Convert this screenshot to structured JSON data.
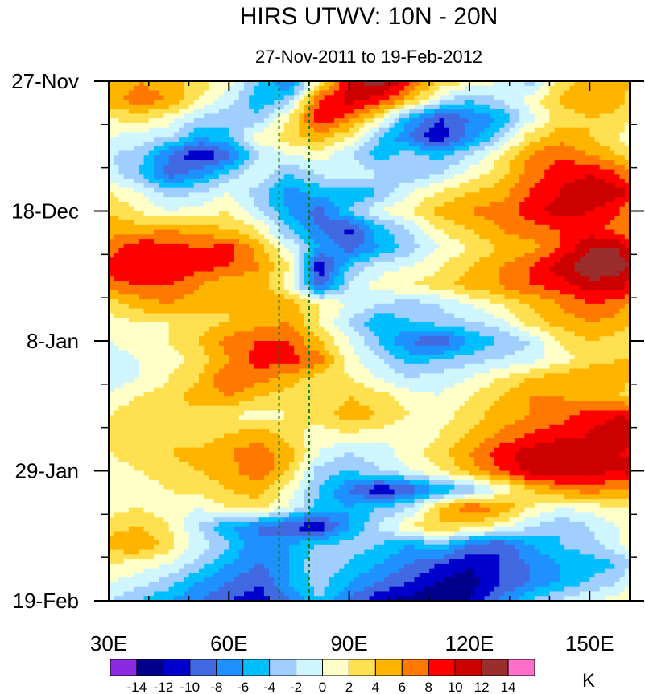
{
  "chart_data": {
    "type": "heatmap",
    "title": "HIRS UTWV: 10N - 20N",
    "subtitle": "27-Nov-2011 to 19-Feb-2012",
    "xlabel": "",
    "ylabel": "",
    "units": "K",
    "x_range": [
      30,
      160
    ],
    "x_ticks": [
      {
        "value": 30,
        "label": "30E"
      },
      {
        "value": 60,
        "label": "60E"
      },
      {
        "value": 90,
        "label": "90E"
      },
      {
        "value": 120,
        "label": "120E"
      },
      {
        "value": 150,
        "label": "150E"
      }
    ],
    "y_range_days": [
      0,
      84
    ],
    "y_ticks": [
      {
        "day": 0,
        "label": "27-Nov"
      },
      {
        "day": 21,
        "label": "18-Dec"
      },
      {
        "day": 42,
        "label": "8-Jan"
      },
      {
        "day": 63,
        "label": "29-Jan"
      },
      {
        "day": 84,
        "label": "19-Feb"
      }
    ],
    "reference_lines_lon": [
      72.5,
      80
    ],
    "colorbar": {
      "colors": [
        "#8a2be2",
        "#00008b",
        "#0000cd",
        "#4169e1",
        "#1e90ff",
        "#00bfff",
        "#a0cfff",
        "#cff5ff",
        "#ffffc8",
        "#ffe050",
        "#ffb400",
        "#ff7800",
        "#ff0000",
        "#cd0000",
        "#9b2d2d",
        "#ff6ec8"
      ],
      "labels": [
        "-14",
        "-12",
        "-10",
        "-8",
        "-6",
        "-4",
        "-2",
        "0",
        "2",
        "4",
        "6",
        "8",
        "10",
        "12",
        "14"
      ]
    },
    "anomaly_field": {
      "lons": [
        30,
        37.5,
        45,
        52.5,
        60,
        67.5,
        75,
        82.5,
        90,
        97.5,
        105,
        112.5,
        120,
        127.5,
        135,
        142.5,
        150,
        157.5,
        160
      ],
      "days": [
        0,
        3,
        6,
        9,
        12,
        15,
        18,
        21,
        24,
        27,
        30,
        33,
        36,
        39,
        42,
        45,
        48,
        51,
        54,
        57,
        60,
        63,
        66,
        69,
        72,
        75,
        78,
        81,
        84
      ],
      "values": [
        [
          4,
          6,
          5,
          3,
          1,
          -4,
          -9,
          2,
          10,
          14,
          8,
          4,
          2,
          0,
          -3,
          3,
          5,
          6,
          4
        ],
        [
          5,
          7,
          6,
          2,
          -1,
          -6,
          -3,
          8,
          11,
          9,
          5,
          -1,
          -4,
          -2,
          1,
          4,
          6,
          5,
          3
        ],
        [
          2,
          3,
          1,
          -2,
          -4,
          -3,
          2,
          10,
          7,
          2,
          -6,
          -10,
          -8,
          -6,
          -1,
          3,
          4,
          3,
          2
        ],
        [
          0,
          -1,
          -2,
          -6,
          -4,
          1,
          3,
          5,
          2,
          -4,
          -8,
          -12,
          -7,
          -3,
          3,
          5,
          4,
          2,
          1
        ],
        [
          -2,
          -3,
          -8,
          -12,
          -9,
          -2,
          0,
          1,
          -2,
          -5,
          -3,
          -5,
          -2,
          2,
          6,
          8,
          6,
          4,
          2
        ],
        [
          -1,
          -4,
          -9,
          -7,
          -3,
          0,
          -4,
          -2,
          0,
          -2,
          -4,
          -2,
          1,
          3,
          7,
          9,
          10,
          8,
          6
        ],
        [
          2,
          0,
          -3,
          -2,
          0,
          -3,
          -7,
          -5,
          -6,
          -4,
          0,
          2,
          4,
          5,
          8,
          10,
          12,
          11,
          9
        ],
        [
          4,
          2,
          0,
          1,
          2,
          -2,
          -6,
          -9,
          -4,
          0,
          2,
          5,
          6,
          7,
          9,
          11,
          10,
          8,
          6
        ],
        [
          5,
          5,
          6,
          5,
          4,
          2,
          -4,
          -8,
          -11,
          -5,
          -2,
          2,
          4,
          6,
          7,
          8,
          9,
          7,
          6
        ],
        [
          7,
          10,
          9,
          8,
          9,
          5,
          0,
          -6,
          -9,
          -6,
          -3,
          0,
          2,
          4,
          5,
          8,
          12,
          12,
          10
        ],
        [
          9,
          10,
          10,
          9,
          8,
          6,
          2,
          -12,
          -4,
          -1,
          0,
          2,
          4,
          6,
          8,
          11,
          14,
          13,
          12
        ],
        [
          7,
          8,
          8,
          6,
          4,
          5,
          1,
          -9,
          -2,
          1,
          2,
          3,
          5,
          6,
          8,
          9,
          11,
          11,
          9
        ],
        [
          3,
          5,
          6,
          5,
          4,
          6,
          5,
          2,
          0,
          -2,
          -3,
          -2,
          0,
          2,
          4,
          6,
          8,
          7,
          5
        ],
        [
          1,
          2,
          2,
          3,
          4,
          5,
          6,
          2,
          -2,
          -6,
          -4,
          -3,
          -2,
          -1,
          3,
          5,
          6,
          5,
          4
        ],
        [
          0,
          1,
          2,
          4,
          7,
          8,
          8,
          4,
          0,
          -4,
          -8,
          -10,
          -6,
          -4,
          -2,
          2,
          4,
          3,
          3
        ],
        [
          -1,
          0,
          1,
          3,
          6,
          9,
          9,
          7,
          1,
          -2,
          -5,
          -4,
          -3,
          -2,
          -1,
          1,
          3,
          4,
          4
        ],
        [
          -2,
          0,
          2,
          4,
          8,
          7,
          5,
          3,
          2,
          0,
          -2,
          -1,
          0,
          2,
          4,
          5,
          6,
          5,
          4
        ],
        [
          1,
          2,
          3,
          5,
          6,
          4,
          3,
          2,
          4,
          3,
          1,
          0,
          2,
          4,
          6,
          6,
          5,
          4,
          3
        ],
        [
          2,
          3,
          4,
          3,
          2,
          1,
          2,
          3,
          5,
          4,
          2,
          1,
          3,
          5,
          6,
          7,
          9,
          10,
          9
        ],
        [
          3,
          4,
          3,
          2,
          4,
          5,
          3,
          1,
          2,
          1,
          0,
          2,
          4,
          6,
          8,
          9,
          10,
          12,
          11
        ],
        [
          2,
          3,
          4,
          5,
          6,
          7,
          5,
          0,
          -2,
          -1,
          1,
          3,
          6,
          9,
          11,
          12,
          11,
          10,
          9
        ],
        [
          1,
          2,
          3,
          4,
          5,
          8,
          4,
          -3,
          -4,
          -2,
          0,
          2,
          5,
          8,
          11,
          12,
          11,
          10,
          12
        ],
        [
          0,
          1,
          2,
          3,
          4,
          5,
          1,
          -4,
          -8,
          -12,
          -10,
          -6,
          -4,
          0,
          4,
          6,
          7,
          6,
          5
        ],
        [
          1,
          2,
          1,
          0,
          2,
          3,
          0,
          -5,
          -6,
          -4,
          -2,
          4,
          8,
          6,
          2,
          0,
          1,
          2,
          2
        ],
        [
          3,
          4,
          2,
          -2,
          -6,
          -8,
          -10,
          -12,
          -6,
          -2,
          2,
          4,
          3,
          1,
          -2,
          -4,
          -2,
          0,
          1
        ],
        [
          5,
          6,
          3,
          -1,
          -4,
          -8,
          -6,
          -4,
          -3,
          -4,
          -6,
          -4,
          -8,
          -10,
          -6,
          -4,
          -3,
          0,
          1
        ],
        [
          2,
          1,
          0,
          -3,
          -6,
          -8,
          -6,
          -2,
          -4,
          -6,
          -8,
          -10,
          -12,
          -10,
          -8,
          -6,
          -5,
          -4,
          -2
        ],
        [
          0,
          -1,
          -3,
          -6,
          -8,
          -10,
          -6,
          -3,
          -6,
          -8,
          -10,
          -12,
          -13,
          -10,
          -8,
          -6,
          -4,
          -2,
          0
        ],
        [
          -2,
          -4,
          -6,
          -8,
          -10,
          -11,
          -8,
          -4,
          -8,
          -12,
          -13,
          -14,
          -12,
          -8,
          -4,
          -2,
          0,
          1,
          2
        ]
      ]
    }
  }
}
